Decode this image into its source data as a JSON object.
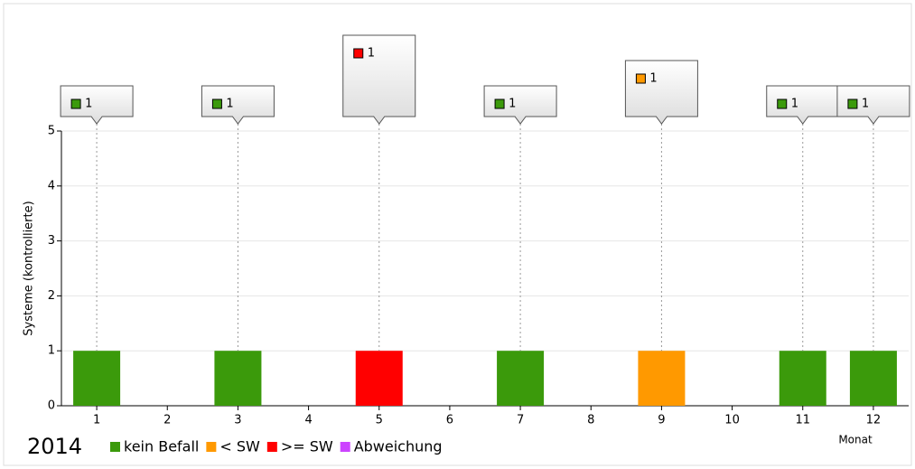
{
  "chart_data": {
    "type": "bar",
    "title": "2014",
    "y_label": "Systeme (kontrollierte)",
    "x_label": "Monat",
    "categories": [
      "1",
      "2",
      "3",
      "4",
      "5",
      "6",
      "7",
      "8",
      "9",
      "10",
      "11",
      "12"
    ],
    "series": [
      {
        "name": "kein Befall",
        "color": "#3b9a0b",
        "values": [
          1,
          null,
          1,
          null,
          null,
          null,
          1,
          null,
          null,
          null,
          1,
          1
        ]
      },
      {
        "name": "< SW",
        "color": "#ff9900",
        "values": [
          null,
          null,
          null,
          null,
          null,
          null,
          null,
          null,
          1,
          null,
          null,
          null
        ]
      },
      {
        "name": ">= SW",
        "color": "#ff0000",
        "values": [
          null,
          null,
          null,
          null,
          1,
          null,
          null,
          null,
          null,
          null,
          null,
          null
        ]
      },
      {
        "name": "Abweichung",
        "color": "#cc44ff",
        "values": [
          null,
          null,
          null,
          null,
          null,
          null,
          null,
          null,
          null,
          null,
          null,
          null
        ]
      }
    ],
    "ylim": [
      0,
      5
    ],
    "yticks": [
      0,
      1,
      2,
      3,
      4,
      5
    ],
    "grid": true
  }
}
